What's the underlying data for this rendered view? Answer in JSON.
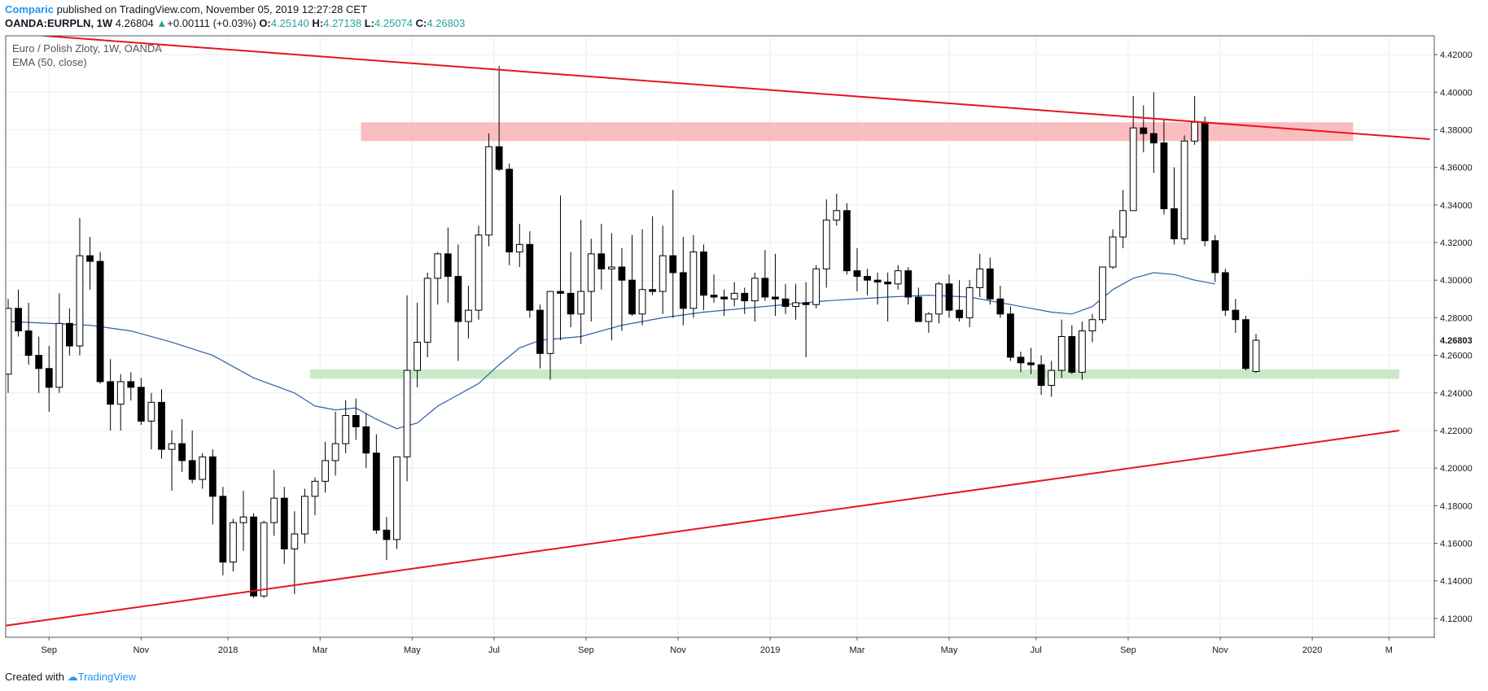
{
  "header": {
    "author": "Comparic",
    "published_text": "published on TradingView.com, November 05, 2019 12:27:28 CET",
    "symbol": "OANDA:EURPLN, 1W",
    "last": "4.26804",
    "change_arrow": "▲",
    "change": "+0.00111 (+0.03%)",
    "o_label": "O:",
    "o_value": "4.25140",
    "h_label": "H:",
    "h_value": "4.27138",
    "l_label": "L:",
    "l_value": "4.25074",
    "c_label": "C:",
    "c_value": "4.26803"
  },
  "footer": {
    "created_with": "Created with",
    "brand": "TradingView"
  },
  "colors": {
    "trendline": "#e8141b",
    "resistance_zone": "#f8a7ab",
    "support_zone": "#b8e3b4",
    "ema": "#2f5ea8",
    "brand": "#2196f3",
    "up_green": "#26a69a"
  },
  "chart_data": {
    "type": "candlestick",
    "title": "Euro / Polish Zloty, 1W, OANDA",
    "indicator_label": "EMA (50, close)",
    "ylim": [
      4.11,
      4.43
    ],
    "y_ticks": [
      "4.12000",
      "4.14000",
      "4.16000",
      "4.18000",
      "4.20000",
      "4.22000",
      "4.24000",
      "4.26000",
      "4.28000",
      "4.30000",
      "4.32000",
      "4.34000",
      "4.36000",
      "4.38000",
      "4.40000",
      "4.42000"
    ],
    "last_price_label": "4.26803",
    "x_ticks": [
      {
        "label": "Sep",
        "t": 4
      },
      {
        "label": "Nov",
        "t": 13
      },
      {
        "label": "2018",
        "t": 21.5
      },
      {
        "label": "Mar",
        "t": 30.5
      },
      {
        "label": "May",
        "t": 39.5
      },
      {
        "label": "Jul",
        "t": 47.5
      },
      {
        "label": "Sep",
        "t": 56.5
      },
      {
        "label": "Nov",
        "t": 65.5
      },
      {
        "label": "2019",
        "t": 74.5
      },
      {
        "label": "Mar",
        "t": 83
      },
      {
        "label": "May",
        "t": 92
      },
      {
        "label": "Jul",
        "t": 100.5
      },
      {
        "label": "Sep",
        "t": 109.5
      },
      {
        "label": "Nov",
        "t": 118.5
      },
      {
        "label": "2020",
        "t": 127.5
      },
      {
        "label": "M",
        "t": 135
      }
    ],
    "candles": [
      [
        4.25,
        4.29,
        4.24,
        4.285
      ],
      [
        4.285,
        4.295,
        4.27,
        4.273
      ],
      [
        4.273,
        4.288,
        4.255,
        4.26
      ],
      [
        4.26,
        4.27,
        4.24,
        4.253
      ],
      [
        4.253,
        4.265,
        4.23,
        4.243
      ],
      [
        4.243,
        4.293,
        4.24,
        4.277
      ],
      [
        4.277,
        4.285,
        4.26,
        4.265
      ],
      [
        4.265,
        4.333,
        4.26,
        4.313
      ],
      [
        4.313,
        4.323,
        4.295,
        4.31
      ],
      [
        4.31,
        4.315,
        4.245,
        4.246
      ],
      [
        4.246,
        4.258,
        4.22,
        4.234
      ],
      [
        4.234,
        4.25,
        4.22,
        4.246
      ],
      [
        4.246,
        4.251,
        4.236,
        4.243
      ],
      [
        4.243,
        4.248,
        4.223,
        4.225
      ],
      [
        4.225,
        4.24,
        4.21,
        4.235
      ],
      [
        4.235,
        4.242,
        4.205,
        4.21
      ],
      [
        4.21,
        4.22,
        4.188,
        4.213
      ],
      [
        4.213,
        4.226,
        4.198,
        4.204
      ],
      [
        4.204,
        4.22,
        4.192,
        4.194
      ],
      [
        4.194,
        4.208,
        4.189,
        4.206
      ],
      [
        4.206,
        4.21,
        4.17,
        4.185
      ],
      [
        4.185,
        4.19,
        4.143,
        4.15
      ],
      [
        4.15,
        4.173,
        4.145,
        4.171
      ],
      [
        4.171,
        4.188,
        4.156,
        4.174
      ],
      [
        4.174,
        4.176,
        4.131,
        4.132
      ],
      [
        4.132,
        4.172,
        4.131,
        4.171
      ],
      [
        4.171,
        4.199,
        4.164,
        4.184
      ],
      [
        4.184,
        4.19,
        4.149,
        4.157
      ],
      [
        4.157,
        4.177,
        4.133,
        4.165
      ],
      [
        4.165,
        4.189,
        4.16,
        4.185
      ],
      [
        4.185,
        4.195,
        4.175,
        4.193
      ],
      [
        4.193,
        4.214,
        4.187,
        4.204
      ],
      [
        4.204,
        4.23,
        4.196,
        4.213
      ],
      [
        4.213,
        4.236,
        4.208,
        4.228
      ],
      [
        4.228,
        4.237,
        4.215,
        4.222
      ],
      [
        4.222,
        4.229,
        4.2,
        4.208
      ],
      [
        4.208,
        4.218,
        4.165,
        4.167
      ],
      [
        4.167,
        4.174,
        4.151,
        4.162
      ],
      [
        4.162,
        4.206,
        4.157,
        4.206
      ],
      [
        4.206,
        4.292,
        4.193,
        4.252
      ],
      [
        4.252,
        4.288,
        4.243,
        4.267
      ],
      [
        4.267,
        4.304,
        4.259,
        4.301
      ],
      [
        4.301,
        4.315,
        4.287,
        4.314
      ],
      [
        4.314,
        4.328,
        4.288,
        4.302
      ],
      [
        4.302,
        4.319,
        4.257,
        4.278
      ],
      [
        4.278,
        4.297,
        4.269,
        4.284
      ],
      [
        4.284,
        4.329,
        4.279,
        4.324
      ],
      [
        4.324,
        4.378,
        4.318,
        4.371
      ],
      [
        4.371,
        4.414,
        4.358,
        4.359
      ],
      [
        4.359,
        4.362,
        4.308,
        4.315
      ],
      [
        4.315,
        4.33,
        4.307,
        4.319
      ],
      [
        4.319,
        4.326,
        4.28,
        4.284
      ],
      [
        4.284,
        4.287,
        4.253,
        4.261
      ],
      [
        4.261,
        4.291,
        4.247,
        4.294
      ],
      [
        4.294,
        4.345,
        4.268,
        4.293
      ],
      [
        4.293,
        4.315,
        4.275,
        4.282
      ],
      [
        4.282,
        4.332,
        4.266,
        4.294
      ],
      [
        4.294,
        4.322,
        4.278,
        4.314
      ],
      [
        4.314,
        4.33,
        4.295,
        4.306
      ],
      [
        4.306,
        4.325,
        4.268,
        4.307
      ],
      [
        4.307,
        4.317,
        4.273,
        4.3
      ],
      [
        4.3,
        4.324,
        4.281,
        4.282
      ],
      [
        4.282,
        4.327,
        4.276,
        4.295
      ],
      [
        4.295,
        4.334,
        4.292,
        4.294
      ],
      [
        4.294,
        4.329,
        4.282,
        4.313
      ],
      [
        4.313,
        4.348,
        4.28,
        4.304
      ],
      [
        4.304,
        4.323,
        4.276,
        4.285
      ],
      [
        4.285,
        4.324,
        4.28,
        4.315
      ],
      [
        4.315,
        4.319,
        4.284,
        4.292
      ],
      [
        4.292,
        4.303,
        4.288,
        4.291
      ],
      [
        4.291,
        4.295,
        4.281,
        4.29
      ],
      [
        4.29,
        4.299,
        4.286,
        4.293
      ],
      [
        4.293,
        4.296,
        4.282,
        4.289
      ],
      [
        4.289,
        4.304,
        4.278,
        4.301
      ],
      [
        4.301,
        4.316,
        4.289,
        4.291
      ],
      [
        4.291,
        4.314,
        4.281,
        4.29
      ],
      [
        4.29,
        4.298,
        4.282,
        4.286
      ],
      [
        4.286,
        4.298,
        4.279,
        4.288
      ],
      [
        4.288,
        4.299,
        4.259,
        4.287
      ],
      [
        4.287,
        4.308,
        4.285,
        4.306
      ],
      [
        4.306,
        4.343,
        4.296,
        4.332
      ],
      [
        4.332,
        4.346,
        4.329,
        4.337
      ],
      [
        4.337,
        4.341,
        4.303,
        4.305
      ],
      [
        4.305,
        4.317,
        4.294,
        4.302
      ],
      [
        4.302,
        4.306,
        4.292,
        4.3
      ],
      [
        4.3,
        4.304,
        4.287,
        4.299
      ],
      [
        4.299,
        4.304,
        4.278,
        4.298
      ],
      [
        4.298,
        4.308,
        4.295,
        4.305
      ],
      [
        4.305,
        4.307,
        4.287,
        4.291
      ],
      [
        4.291,
        4.296,
        4.278,
        4.278
      ],
      [
        4.278,
        4.283,
        4.272,
        4.282
      ],
      [
        4.282,
        4.299,
        4.277,
        4.298
      ],
      [
        4.298,
        4.303,
        4.28,
        4.284
      ],
      [
        4.284,
        4.3,
        4.278,
        4.28
      ],
      [
        4.28,
        4.3,
        4.275,
        4.296
      ],
      [
        4.296,
        4.314,
        4.291,
        4.306
      ],
      [
        4.306,
        4.312,
        4.287,
        4.29
      ],
      [
        4.29,
        4.297,
        4.28,
        4.282
      ],
      [
        4.282,
        4.286,
        4.257,
        4.259
      ],
      [
        4.259,
        4.262,
        4.251,
        4.256
      ],
      [
        4.256,
        4.264,
        4.25,
        4.255
      ],
      [
        4.255,
        4.26,
        4.239,
        4.244
      ],
      [
        4.244,
        4.257,
        4.238,
        4.252
      ],
      [
        4.252,
        4.279,
        4.248,
        4.27
      ],
      [
        4.27,
        4.276,
        4.25,
        4.251
      ],
      [
        4.251,
        4.278,
        4.247,
        4.273
      ],
      [
        4.273,
        4.282,
        4.267,
        4.279
      ],
      [
        4.279,
        4.306,
        4.277,
        4.307
      ],
      [
        4.307,
        4.327,
        4.306,
        4.323
      ],
      [
        4.323,
        4.348,
        4.317,
        4.337
      ],
      [
        4.337,
        4.398,
        4.337,
        4.381
      ],
      [
        4.381,
        4.393,
        4.368,
        4.378
      ],
      [
        4.378,
        4.4,
        4.357,
        4.373
      ],
      [
        4.373,
        4.386,
        4.335,
        4.338
      ],
      [
        4.338,
        4.36,
        4.319,
        4.322
      ],
      [
        4.322,
        4.377,
        4.319,
        4.374
      ],
      [
        4.374,
        4.398,
        4.372,
        4.384
      ],
      [
        4.384,
        4.387,
        4.318,
        4.321
      ],
      [
        4.321,
        4.324,
        4.299,
        4.304
      ],
      [
        4.304,
        4.306,
        4.281,
        4.284
      ],
      [
        4.284,
        4.29,
        4.272,
        4.279
      ],
      [
        4.279,
        4.281,
        4.252,
        4.253
      ],
      [
        4.2514,
        4.2714,
        4.2507,
        4.268
      ]
    ],
    "ema": [
      [
        0,
        4.278
      ],
      [
        8,
        4.276
      ],
      [
        12,
        4.273
      ],
      [
        16,
        4.267
      ],
      [
        20,
        4.26
      ],
      [
        24,
        4.248
      ],
      [
        28,
        4.24
      ],
      [
        30,
        4.233
      ],
      [
        32,
        4.231
      ],
      [
        34,
        4.232
      ],
      [
        36,
        4.226
      ],
      [
        38,
        4.221
      ],
      [
        40,
        4.224
      ],
      [
        42,
        4.233
      ],
      [
        44,
        4.239
      ],
      [
        46,
        4.245
      ],
      [
        48,
        4.255
      ],
      [
        50,
        4.264
      ],
      [
        52,
        4.268
      ],
      [
        56,
        4.27
      ],
      [
        60,
        4.276
      ],
      [
        64,
        4.28
      ],
      [
        68,
        4.283
      ],
      [
        72,
        4.285
      ],
      [
        76,
        4.287
      ],
      [
        80,
        4.289
      ],
      [
        86,
        4.291
      ],
      [
        90,
        4.292
      ],
      [
        94,
        4.291
      ],
      [
        98,
        4.287
      ],
      [
        102,
        4.283
      ],
      [
        104,
        4.282
      ],
      [
        106,
        4.286
      ],
      [
        108,
        4.295
      ],
      [
        110,
        4.301
      ],
      [
        112,
        4.304
      ],
      [
        114,
        4.303
      ],
      [
        116,
        4.3
      ],
      [
        118,
        4.298
      ]
    ],
    "trendlines": [
      {
        "name": "upper-resistance-line",
        "from": [
          3.5,
          4.43
        ],
        "to": [
          139,
          4.375
        ]
      },
      {
        "name": "lower-support-line",
        "from": [
          -0.5,
          4.116
        ],
        "to": [
          136,
          4.22
        ]
      }
    ],
    "zones": [
      {
        "name": "resistance-zone",
        "t_from": 34.5,
        "t_to": 131.5,
        "y_from": 4.374,
        "y_to": 4.384
      },
      {
        "name": "support-zone",
        "t_from": 29.5,
        "t_to": 136,
        "y_from": 4.2475,
        "y_to": 4.2525
      }
    ]
  }
}
